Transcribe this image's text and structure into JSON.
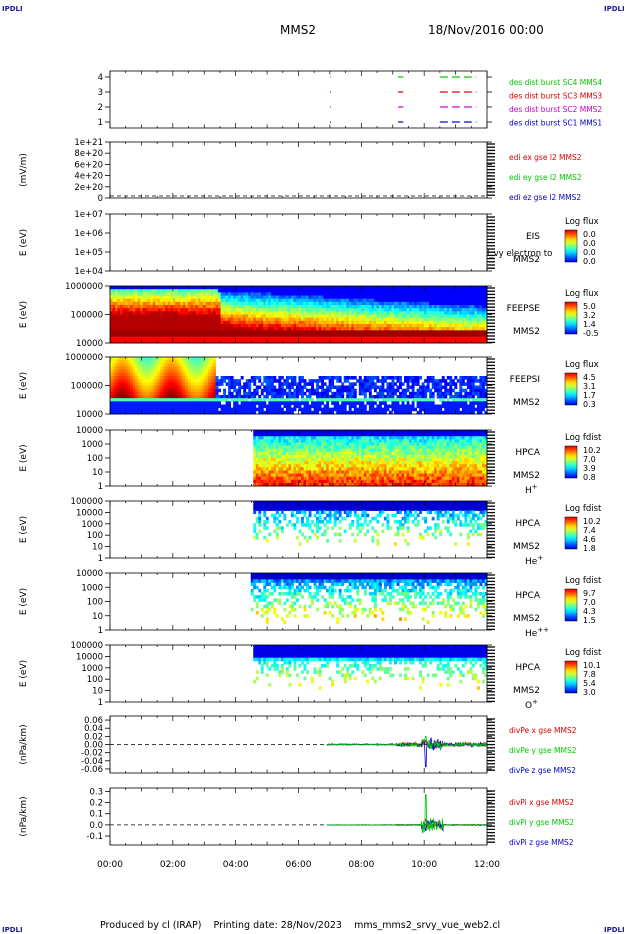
{
  "header": {
    "corner_label": "IPDLI",
    "spacecraft": "MMS2",
    "date": "18/Nov/2016 00:00"
  },
  "footer": {
    "produced_by": "Produced by cl (IRAP)",
    "printing_date": "Printing date: 28/Nov/2023",
    "file": "mms_mms2_srvy_vue_web2.cl"
  },
  "chart_data": [
    {
      "type": "line",
      "ylabel": "",
      "ytick_labels": [
        "1",
        "2",
        "3",
        "4"
      ],
      "ylim": [
        0.6,
        4.4
      ],
      "series": [
        {
          "name": "des dist burst SC1 MMS1",
          "color": "#0000c8",
          "y": 1,
          "segments": [
            [
              "07:00",
              "07:02"
            ],
            [
              "09:10",
              "09:20"
            ],
            [
              "10:30",
              "11:40"
            ]
          ]
        },
        {
          "name": "des dist burst SC2 MMS2",
          "color": "#c800c8",
          "y": 2,
          "segments": [
            [
              "07:00",
              "07:02"
            ],
            [
              "09:10",
              "09:20"
            ],
            [
              "10:30",
              "11:40"
            ]
          ]
        },
        {
          "name": "des dist burst SC3 MMS3",
          "color": "#dc0000",
          "y": 3,
          "segments": [
            [
              "07:00",
              "07:02"
            ],
            [
              "09:10",
              "09:20"
            ],
            [
              "10:30",
              "11:40"
            ]
          ]
        },
        {
          "name": "des dist burst SC4 MMS4",
          "color": "#00c800",
          "y": 4,
          "segments": [
            [
              "07:00",
              "07:02"
            ],
            [
              "09:10",
              "09:20"
            ],
            [
              "10:30",
              "11:40"
            ]
          ]
        }
      ]
    },
    {
      "type": "line",
      "ylabel": "(mV/m)",
      "ytick_labels": [
        "0",
        "2e+20",
        "4e+20",
        "6e+20",
        "8e+20",
        "1e+21"
      ],
      "ylim": [
        0,
        1e+21
      ],
      "series": [
        {
          "name": "edi ex gse l2 MMS2",
          "color": "#dc0000"
        },
        {
          "name": "edi ey gse l2 MMS2",
          "color": "#00c800"
        },
        {
          "name": "edi ez gse l2 MMS2",
          "color": "#0000c8"
        }
      ]
    },
    {
      "type": "heatmap",
      "ylabel": "E (eV)",
      "ytick_labels": [
        "1e+04",
        "1e+05",
        "1e+06",
        "1e+07"
      ],
      "yscale": "log",
      "instrument": [
        "EIS",
        "MMS2"
      ],
      "overlay_text": "l_vy electron to",
      "colorbar": {
        "title": "Log flux",
        "ticks": [
          "0.0",
          "0.0",
          "0.0",
          "0.0"
        ]
      }
    },
    {
      "type": "heatmap",
      "ylabel": "E (eV)",
      "ytick_labels": [
        "10000",
        "100000",
        "1000000"
      ],
      "yscale": "log",
      "instrument": [
        "FEEPSE",
        "MMS2"
      ],
      "colorbar": {
        "title": "Log flux",
        "ticks": [
          "5.0",
          "3.2",
          "1.4",
          "-0.5"
        ]
      }
    },
    {
      "type": "heatmap",
      "ylabel": "E (eV)",
      "ytick_labels": [
        "10000",
        "100000",
        "1000000"
      ],
      "yscale": "log",
      "instrument": [
        "FEEPSI",
        "MMS2"
      ],
      "colorbar": {
        "title": "Log flux",
        "ticks": [
          "4.5",
          "3.1",
          "1.7",
          "0.3"
        ]
      }
    },
    {
      "type": "heatmap",
      "ylabel": "E (eV)",
      "ytick_labels": [
        "1",
        "10",
        "100",
        "1000",
        "10000"
      ],
      "yscale": "log",
      "instrument": [
        "HPCA",
        "MMS2",
        "H+"
      ],
      "colorbar": {
        "title": "Log fdist",
        "ticks": [
          "10.2",
          "7.0",
          "3.9",
          "0.8"
        ]
      }
    },
    {
      "type": "heatmap",
      "ylabel": "E (eV)",
      "ytick_labels": [
        "1",
        "10",
        "100",
        "1000",
        "10000",
        "100000"
      ],
      "yscale": "log",
      "instrument": [
        "HPCA",
        "MMS2",
        "He+"
      ],
      "colorbar": {
        "title": "Log fdist",
        "ticks": [
          "10.2",
          "7.4",
          "4.6",
          "1.8"
        ]
      }
    },
    {
      "type": "heatmap",
      "ylabel": "E (eV)",
      "ytick_labels": [
        "1",
        "10",
        "100",
        "1000",
        "10000"
      ],
      "yscale": "log",
      "instrument": [
        "HPCA",
        "MMS2",
        "He++"
      ],
      "colorbar": {
        "title": "Log fdist",
        "ticks": [
          "9.7",
          "7.0",
          "4.3",
          "1.5"
        ]
      }
    },
    {
      "type": "heatmap",
      "ylabel": "E (eV)",
      "ytick_labels": [
        "1",
        "10",
        "100",
        "1000",
        "10000",
        "100000"
      ],
      "yscale": "log",
      "instrument": [
        "HPCA",
        "MMS2",
        "O+"
      ],
      "colorbar": {
        "title": "Log fdist",
        "ticks": [
          "10.1",
          "7.8",
          "5.4",
          "3.0"
        ]
      }
    },
    {
      "type": "line",
      "ylabel": "(nPa/km)",
      "ytick_labels": [
        "-0.06",
        "-0.04",
        "-0.02",
        "0.00",
        "0.02",
        "0.04",
        "0.06"
      ],
      "ylim": [
        -0.07,
        0.07
      ],
      "series": [
        {
          "name": "divPe x gse MMS2",
          "color": "#dc0000"
        },
        {
          "name": "divPe y gse MMS2",
          "color": "#00c800"
        },
        {
          "name": "divPe z gse MMS2",
          "color": "#0000c8"
        }
      ]
    },
    {
      "type": "line",
      "ylabel": "(nPa/km)",
      "ytick_labels": [
        "-0.1",
        "0.0",
        "0.1",
        "0.2",
        "0.3"
      ],
      "ylim": [
        -0.18,
        0.33
      ],
      "series": [
        {
          "name": "divPi x gse MMS2",
          "color": "#dc0000"
        },
        {
          "name": "divPi y gse MMS2",
          "color": "#00c800"
        },
        {
          "name": "divPi z gse MMS2",
          "color": "#0000c8"
        }
      ]
    }
  ],
  "time_axis": {
    "labels": [
      "00:00",
      "02:00",
      "04:00",
      "06:00",
      "08:00",
      "10:00",
      "12:00"
    ],
    "range_hours": [
      0,
      12
    ]
  }
}
